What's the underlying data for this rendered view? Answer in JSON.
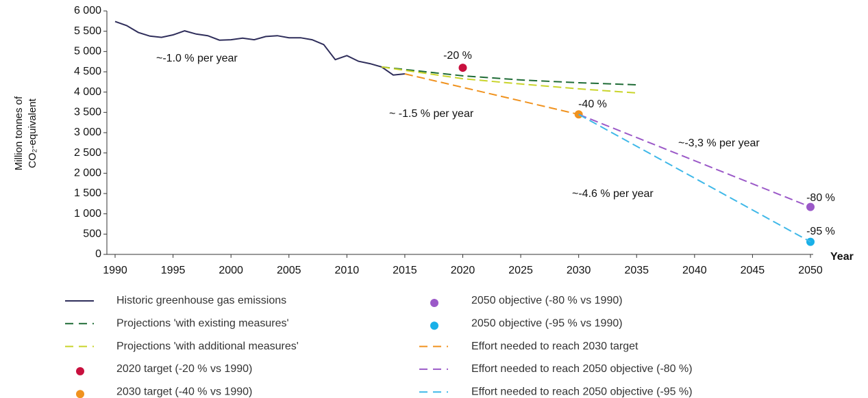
{
  "chart_data": {
    "type": "line",
    "ylabel": [
      "Million tonnes of",
      "CO₂-equivalent"
    ],
    "xlabel": "Year",
    "xlim": [
      1990,
      2050
    ],
    "xticks": [
      1990,
      1995,
      2000,
      2005,
      2010,
      2015,
      2020,
      2025,
      2030,
      2035,
      2040,
      2045,
      2050
    ],
    "ylim": [
      0,
      6000
    ],
    "yticks": [
      0,
      500,
      {
        "value": 1000,
        "label": "1 000"
      },
      {
        "value": 1500,
        "label": "1 500"
      },
      {
        "value": 2000,
        "label": "2 000"
      },
      {
        "value": 2500,
        "label": "2 500"
      },
      {
        "value": 3000,
        "label": "3 000"
      },
      {
        "value": 3500,
        "label": "3 500"
      },
      {
        "value": 4000,
        "label": "4 000"
      },
      {
        "value": 4500,
        "label": "4 500"
      },
      {
        "value": 5000,
        "label": "5 000"
      },
      {
        "value": 5500,
        "label": "5 500"
      },
      {
        "value": 6000,
        "label": "6 000"
      }
    ],
    "series": [
      {
        "name": "Historic greenhouse gas emissions",
        "color": "#2e2d5a",
        "style": "solid",
        "x": [
          1990,
          1991,
          1992,
          1993,
          1994,
          1995,
          1996,
          1997,
          1998,
          1999,
          2000,
          2001,
          2002,
          2003,
          2004,
          2005,
          2006,
          2007,
          2008,
          2009,
          2010,
          2011,
          2012,
          2013,
          2014,
          2015
        ],
        "values": [
          5740,
          5640,
          5470,
          5380,
          5350,
          5410,
          5510,
          5430,
          5390,
          5280,
          5290,
          5330,
          5290,
          5370,
          5390,
          5340,
          5340,
          5290,
          5170,
          4800,
          4900,
          4760,
          4700,
          4620,
          4420,
          4450
        ]
      },
      {
        "name": "Projections 'with existing measures'",
        "color": "#1e6b35",
        "style": "dashed",
        "x": [
          2013,
          2020,
          2025,
          2030,
          2035
        ],
        "values": [
          4620,
          4400,
          4300,
          4230,
          4180
        ]
      },
      {
        "name": "Projections 'with additional measures'",
        "color": "#c9d42a",
        "style": "dashed",
        "x": [
          2013,
          2020,
          2025,
          2030,
          2035
        ],
        "values": [
          4620,
          4330,
          4200,
          4080,
          3980
        ]
      },
      {
        "name": "2020 target (-20 % vs 1990)",
        "color": "#c8103e",
        "style": "marker",
        "x": [
          2020
        ],
        "values": [
          4600
        ]
      },
      {
        "name": "2030 target (-40 % vs 1990)",
        "color": "#f0921e",
        "style": "marker",
        "x": [
          2030
        ],
        "values": [
          3450
        ]
      },
      {
        "name": "2050 objective (-80 % vs 1990)",
        "color": "#9b59c8",
        "style": "marker",
        "x": [
          2050
        ],
        "values": [
          1170
        ]
      },
      {
        "name": "2050 objective (-95 % vs 1990)",
        "color": "#19b0e8",
        "style": "marker",
        "x": [
          2050
        ],
        "values": [
          310
        ]
      },
      {
        "name": "Effort needed to reach 2030 target",
        "color": "#f0921e",
        "style": "dashed",
        "x": [
          2015,
          2030
        ],
        "values": [
          4450,
          3450
        ]
      },
      {
        "name": "Effort needed to reach 2050 objective (-80 %)",
        "color": "#9b59c8",
        "style": "dashed",
        "x": [
          2030,
          2050
        ],
        "values": [
          3450,
          1170
        ]
      },
      {
        "name": "Effort needed to reach 2050 objective (-95 %)",
        "color": "#3fb8e8",
        "style": "dashed",
        "x": [
          2030,
          2050
        ],
        "values": [
          3450,
          310
        ]
      }
    ],
    "annotations": [
      "~-1.0 % per year",
      "-20 %",
      "~ -1.5 % per year",
      "-40 %",
      "~-3,3 % per year",
      "~-4.6 % per year",
      "-80 %",
      "-95 %"
    ]
  }
}
